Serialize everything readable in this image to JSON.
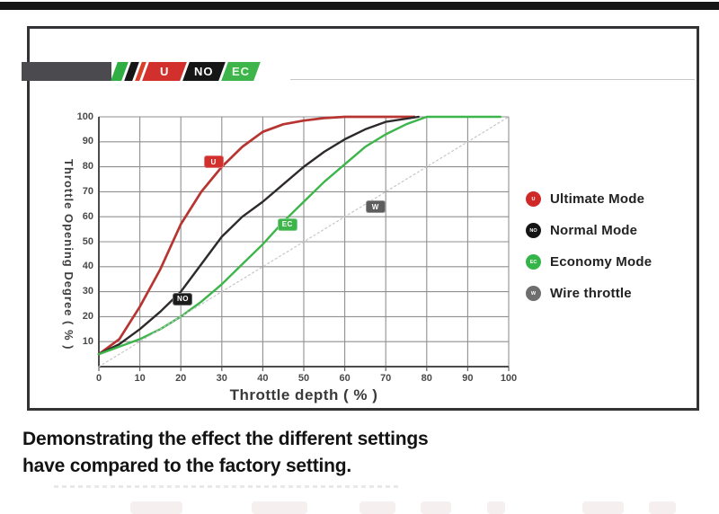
{
  "logo": {
    "segments": [
      {
        "label": "U",
        "color": "#d2302c"
      },
      {
        "label": "NO",
        "color": "#161616"
      },
      {
        "label": "EC",
        "color": "#3db54a"
      }
    ]
  },
  "chart_data": {
    "type": "line",
    "title": "",
    "xlabel": "Throttle depth ( % )",
    "ylabel": "Throttle Opening Degree ( % )",
    "xlim": [
      0,
      100
    ],
    "ylim": [
      0,
      100
    ],
    "x_ticks": [
      0,
      10,
      20,
      30,
      40,
      50,
      60,
      70,
      80,
      90,
      100
    ],
    "y_ticks": [
      10,
      20,
      30,
      40,
      50,
      60,
      70,
      80,
      90,
      100
    ],
    "grid": true,
    "legend_position": "right-outside",
    "series": [
      {
        "name": "Ultimate Mode",
        "color": "#b73531",
        "style": "solid",
        "width": 2.7,
        "x": [
          0,
          5,
          10,
          15,
          20,
          25,
          30,
          35,
          40,
          45,
          50,
          55,
          60,
          65,
          70,
          77
        ],
        "y": [
          5,
          11,
          24,
          39,
          57,
          70,
          80,
          88,
          94,
          97,
          98.5,
          99.5,
          100,
          100,
          100,
          100
        ]
      },
      {
        "name": "Normal Mode",
        "color": "#2e2a2a",
        "style": "solid",
        "width": 2.4,
        "x": [
          0,
          5,
          10,
          15,
          20,
          25,
          30,
          35,
          40,
          45,
          50,
          55,
          60,
          65,
          70,
          78
        ],
        "y": [
          5,
          9,
          15,
          22,
          30,
          41,
          52,
          60,
          66,
          73,
          80,
          86,
          91,
          95,
          98,
          100
        ]
      },
      {
        "name": "Economy Mode",
        "color": "#3cb54a",
        "style": "solid",
        "width": 2.4,
        "x": [
          0,
          5,
          10,
          15,
          20,
          25,
          30,
          35,
          40,
          45,
          50,
          55,
          60,
          65,
          70,
          75,
          80,
          98
        ],
        "y": [
          5,
          8,
          11,
          15,
          20,
          26,
          33,
          41,
          49,
          58,
          66,
          74,
          81,
          88,
          93,
          97,
          100,
          100
        ]
      },
      {
        "name": "Wire throttle",
        "color": "#c6c6c6",
        "style": "dotted",
        "width": 1.2,
        "x": [
          0,
          100
        ],
        "y": [
          0,
          100
        ]
      }
    ],
    "curve_badges": [
      {
        "label": "U",
        "x": 28,
        "y": 82,
        "bg": "#d2302c"
      },
      {
        "label": "NO",
        "x": 20.5,
        "y": 27,
        "bg": "#1c1c1c"
      },
      {
        "label": "EC",
        "x": 46,
        "y": 57,
        "bg": "#3db54a"
      },
      {
        "label": "W",
        "x": 67.5,
        "y": 64,
        "bg": "#5d5d5d"
      }
    ]
  },
  "legend": {
    "items": [
      {
        "icon": "U",
        "icon_color": "#cf2a27",
        "label": "Ultimate Mode"
      },
      {
        "icon": "NO",
        "icon_color": "#151515",
        "label": "Normal Mode"
      },
      {
        "icon": "EC",
        "icon_color": "#35b44a",
        "label": "Economy Mode"
      },
      {
        "icon": "W",
        "icon_color": "#6e6e6e",
        "label": "Wire throttle"
      }
    ]
  },
  "caption": {
    "line1": "Demonstrating the effect the different settings",
    "line2": "have compared to the factory setting."
  }
}
